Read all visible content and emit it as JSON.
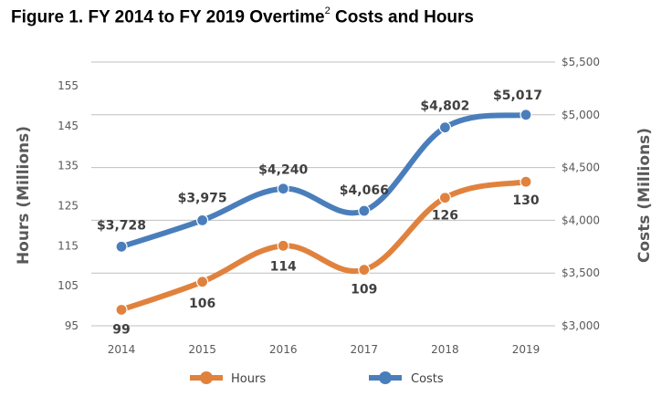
{
  "title": {
    "main": "Figure 1. FY 2014 to FY 2019 Overtime",
    "superscript": "2",
    "rest": " Costs and Hours"
  },
  "chart_data": {
    "type": "line",
    "title": "Figure 1. FY 2014 to FY 2019 Overtime2 Costs and Hours",
    "categories": [
      "2014",
      "2015",
      "2016",
      "2017",
      "2018",
      "2019"
    ],
    "y_left": {
      "label": "Hours (Millions)",
      "range": [
        95,
        155
      ],
      "ticks": [
        "95",
        "105",
        "115",
        "125",
        "135",
        "145",
        "155"
      ]
    },
    "y_right": {
      "label": "Costs (Millions)",
      "range": [
        3000,
        5500
      ],
      "ticks": [
        "$3,000",
        "$3,500",
        "$4,000",
        "$4,500",
        "$5,000",
        "$5,500"
      ]
    },
    "grid": true,
    "legend_position": "bottom",
    "series": [
      {
        "name": "Hours",
        "axis": "left",
        "color": "#E0823E",
        "values": [
          99,
          106,
          114,
          109,
          126,
          130
        ],
        "labels": [
          "99",
          "106",
          "114",
          "109",
          "126",
          "130"
        ],
        "plot_values": [
          99,
          106,
          115,
          109,
          127,
          131
        ]
      },
      {
        "name": "Costs",
        "axis": "right",
        "color": "#4A7EBB",
        "values": [
          3728,
          3975,
          4240,
          4066,
          4802,
          5017
        ],
        "labels": [
          "$3,728",
          "$3,975",
          "$4,240",
          "$4,066",
          "$4,802",
          "$5,017"
        ],
        "plot_values": [
          3750,
          4000,
          4300,
          4090,
          4880,
          5000
        ]
      }
    ]
  }
}
